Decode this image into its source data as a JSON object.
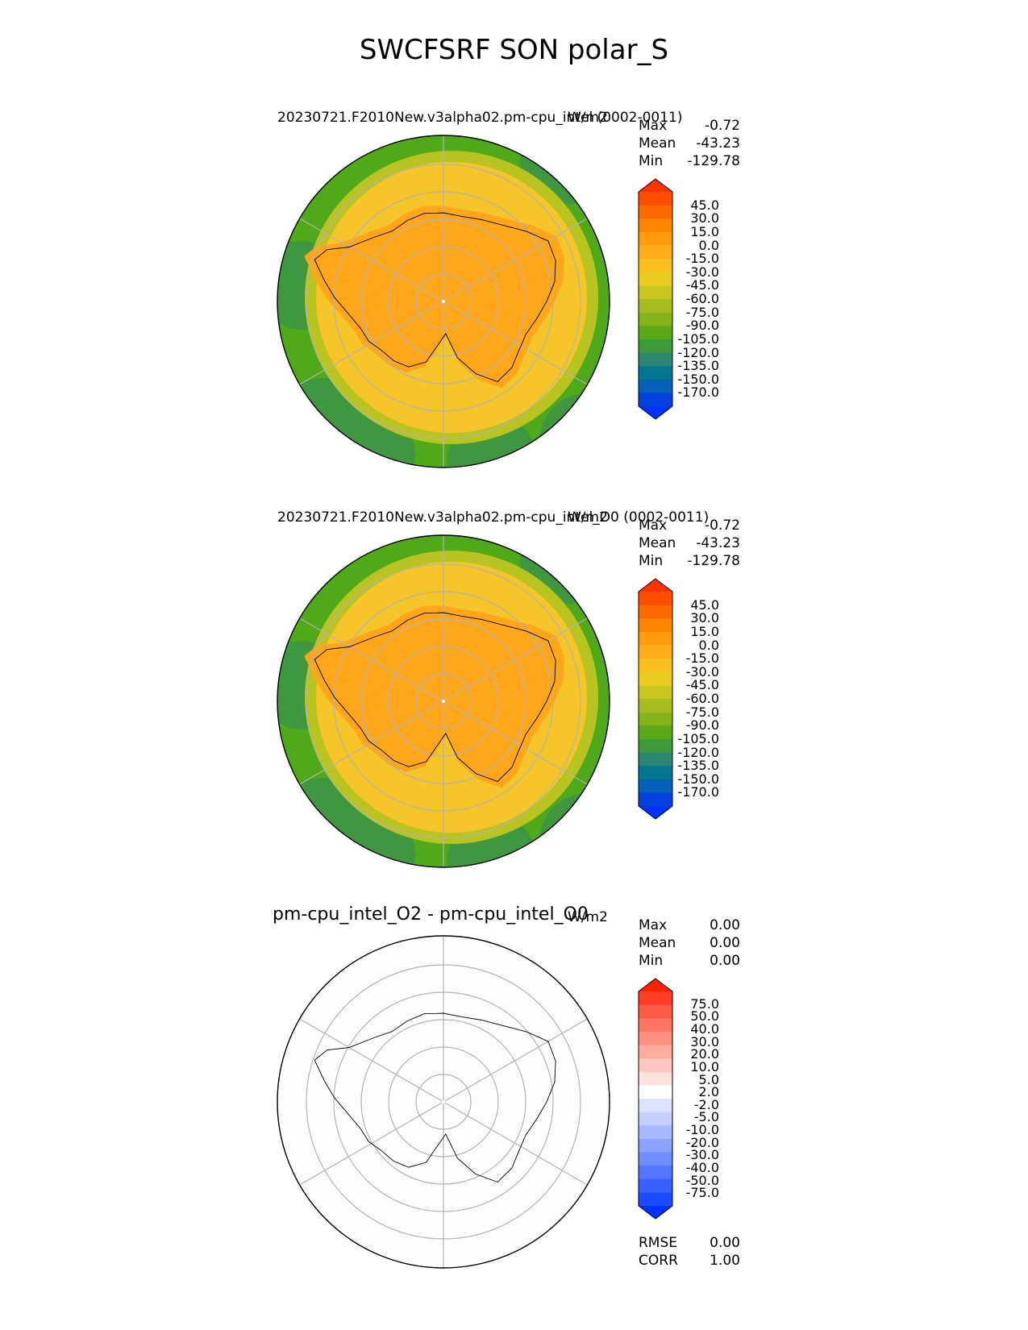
{
  "figure_title": "SWCFSRF SON polar_S",
  "panels": [
    {
      "id": "test",
      "title": "20230721.F2010New.v3alpha02.pm-cpu_intel (0002-0011)",
      "units": "W/m2",
      "stats": {
        "max_label": "Max",
        "max": "-0.72",
        "mean_label": "Mean",
        "mean": "-43.23",
        "min_label": "Min",
        "min": "-129.78"
      },
      "colorbar": {
        "ticks": [
          "45.0",
          "30.0",
          "15.0",
          "0.0",
          "-15.0",
          "-30.0",
          "-45.0",
          "-60.0",
          "-75.0",
          "-90.0",
          "-105.0",
          "-120.0",
          "-135.0",
          "-150.0",
          "-170.0"
        ],
        "colors": [
          "#ff3300",
          "#ff4d00",
          "#ff6a00",
          "#ff8400",
          "#ff9b0f",
          "#ffad19",
          "#f9c020",
          "#e9cb22",
          "#cbc523",
          "#a9bc1f",
          "#86b31a",
          "#5aaa18",
          "#3f9a3c",
          "#2e8672",
          "#06758f",
          "#0560b8",
          "#0044dd",
          "#0033ff"
        ]
      }
    },
    {
      "id": "reference",
      "title": "20230721.F2010New.v3alpha02.pm-cpu_intel_O0 (0002-0011)",
      "units": "W/m2",
      "stats": {
        "max_label": "Max",
        "max": "-0.72",
        "mean_label": "Mean",
        "mean": "-43.23",
        "min_label": "Min",
        "min": "-129.78"
      },
      "colorbar": {
        "ticks": [
          "45.0",
          "30.0",
          "15.0",
          "0.0",
          "-15.0",
          "-30.0",
          "-45.0",
          "-60.0",
          "-75.0",
          "-90.0",
          "-105.0",
          "-120.0",
          "-135.0",
          "-150.0",
          "-170.0"
        ],
        "colors": [
          "#ff3300",
          "#ff4d00",
          "#ff6a00",
          "#ff8400",
          "#ff9b0f",
          "#ffad19",
          "#f9c020",
          "#e9cb22",
          "#cbc523",
          "#a9bc1f",
          "#86b31a",
          "#5aaa18",
          "#3f9a3c",
          "#2e8672",
          "#06758f",
          "#0560b8",
          "#0044dd",
          "#0033ff"
        ]
      }
    },
    {
      "id": "difference",
      "title": "pm-cpu_intel_O2 - pm-cpu_intel_O0",
      "units": "W/m2",
      "stats": {
        "max_label": "Max",
        "max": "0.00",
        "mean_label": "Mean",
        "mean": "0.00",
        "min_label": "Min",
        "min": "0.00"
      },
      "colorbar": {
        "ticks": [
          "75.0",
          "50.0",
          "40.0",
          "30.0",
          "20.0",
          "10.0",
          "5.0",
          "2.0",
          "-2.0",
          "-5.0",
          "-10.0",
          "-20.0",
          "-30.0",
          "-40.0",
          "-50.0",
          "-75.0"
        ],
        "colors": [
          "#ff2200",
          "#ff3e25",
          "#ff5a45",
          "#ff7563",
          "#ff9080",
          "#ffab9e",
          "#ffc6bd",
          "#ffe2dd",
          "#ffffff",
          "#dde3ff",
          "#c4ceff",
          "#a8b8ff",
          "#8ca2ff",
          "#708cff",
          "#5476ff",
          "#3860ff",
          "#1c4aff",
          "#0033ff"
        ]
      },
      "metrics": {
        "rmse_label": "RMSE",
        "rmse": "0.00",
        "corr_label": "CORR",
        "corr": "1.00"
      }
    }
  ],
  "map_colors": {
    "antarctica": "#ffa61a",
    "ring_yellow": "#f5c52a",
    "ring_yellowgreen": "#b9c321",
    "ocean_green": "#50a91a",
    "ocean_darkgreen": "#3f973f",
    "difference_fill": "#fdfdfd",
    "gridline": "#b3b3b3",
    "coastline": "#000000"
  }
}
